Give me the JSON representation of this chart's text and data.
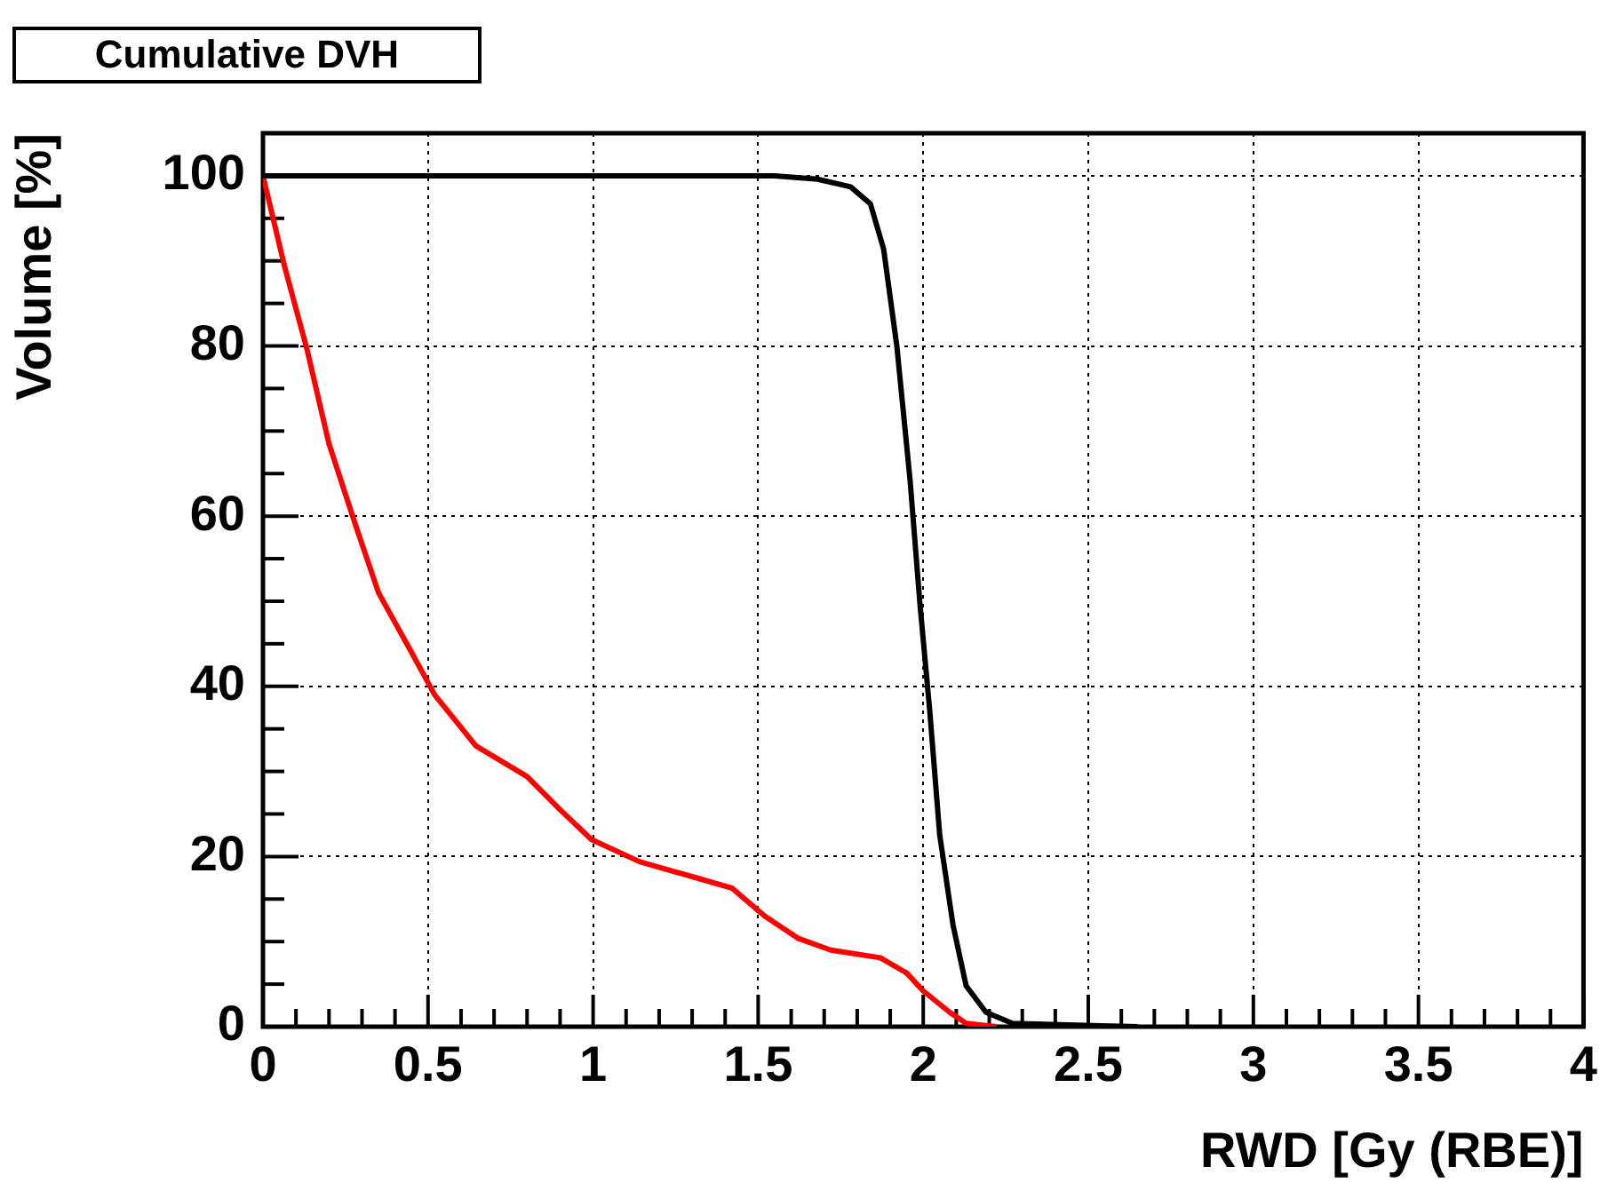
{
  "chart_data": {
    "type": "line",
    "title": "Cumulative DVH",
    "xlabel": "RWD [Gy (RBE)]",
    "ylabel": "Volume [%]",
    "xlim": [
      0,
      4
    ],
    "ylim": [
      0,
      105
    ],
    "xticks": [
      0,
      {
        "value": 0.1,
        "label": null
      },
      {
        "value": 0.2,
        "label": null
      },
      {
        "value": 0.3,
        "label": null
      },
      {
        "value": 0.4,
        "label": null
      },
      0.5,
      {
        "value": 0.6,
        "label": null
      },
      {
        "value": 0.7,
        "label": null
      },
      {
        "value": 0.8,
        "label": null
      },
      {
        "value": 0.9,
        "label": null
      },
      1,
      {
        "value": 1.1,
        "label": null
      },
      {
        "value": 1.2,
        "label": null
      },
      {
        "value": 1.3,
        "label": null
      },
      {
        "value": 1.4,
        "label": null
      },
      1.5,
      {
        "value": 1.6,
        "label": null
      },
      {
        "value": 1.7,
        "label": null
      },
      {
        "value": 1.8,
        "label": null
      },
      {
        "value": 1.9,
        "label": null
      },
      2,
      {
        "value": 2.1,
        "label": null
      },
      {
        "value": 2.2,
        "label": null
      },
      {
        "value": 2.3,
        "label": null
      },
      {
        "value": 2.4,
        "label": null
      },
      2.5,
      {
        "value": 2.6,
        "label": null
      },
      {
        "value": 2.7,
        "label": null
      },
      {
        "value": 2.8,
        "label": null
      },
      {
        "value": 2.9,
        "label": null
      },
      3,
      {
        "value": 3.1,
        "label": null
      },
      {
        "value": 3.2,
        "label": null
      },
      {
        "value": 3.3,
        "label": null
      },
      {
        "value": 3.4,
        "label": null
      },
      3.5,
      {
        "value": 3.6,
        "label": null
      },
      {
        "value": 3.7,
        "label": null
      },
      {
        "value": 3.8,
        "label": null
      },
      {
        "value": 3.9,
        "label": null
      },
      4
    ],
    "yticks": [
      0,
      {
        "value": 5,
        "label": null
      },
      {
        "value": 10,
        "label": null
      },
      {
        "value": 15,
        "label": null
      },
      20,
      {
        "value": 25,
        "label": null
      },
      {
        "value": 30,
        "label": null
      },
      {
        "value": 35,
        "label": null
      },
      40,
      {
        "value": 45,
        "label": null
      },
      {
        "value": 50,
        "label": null
      },
      {
        "value": 55,
        "label": null
      },
      60,
      {
        "value": 65,
        "label": null
      },
      {
        "value": 70,
        "label": null
      },
      {
        "value": 75,
        "label": null
      },
      80,
      {
        "value": 85,
        "label": null
      },
      {
        "value": 90,
        "label": null
      },
      {
        "value": 95,
        "label": null
      },
      100,
      {
        "value": 105,
        "label": null
      }
    ],
    "grid": true,
    "legend": false,
    "marker": "none",
    "line_style": "solid",
    "series": [
      {
        "color": "#000000",
        "x": [
          0,
          1.55,
          1.68,
          1.78,
          1.84,
          1.88,
          1.92,
          1.96,
          1.99,
          2.02,
          2.05,
          2.09,
          2.13,
          2.19,
          2.27,
          2.54,
          2.65
        ],
        "values": [
          100,
          100,
          99.6,
          98.7,
          96.7,
          91.4,
          80,
          64.3,
          49.7,
          37,
          22.5,
          12,
          4.8,
          1.7,
          0.4,
          0.1,
          0
        ]
      },
      {
        "color": "#ff0000",
        "x": [
          0,
          0.065,
          0.134,
          0.2,
          0.28,
          0.35,
          0.45,
          0.52,
          0.645,
          0.8,
          0.9,
          0.995,
          1.14,
          1.33,
          1.42,
          1.52,
          1.62,
          1.72,
          1.87,
          1.95,
          2.0,
          2.08,
          2.13,
          2.22
        ],
        "values": [
          100,
          89.4,
          79.5,
          68.5,
          59,
          51,
          44,
          39,
          33,
          29.4,
          25.5,
          22,
          19.4,
          17.3,
          16.3,
          13,
          10.4,
          9,
          8.1,
          6.3,
          4.2,
          1.7,
          0.4,
          0
        ]
      }
    ]
  }
}
